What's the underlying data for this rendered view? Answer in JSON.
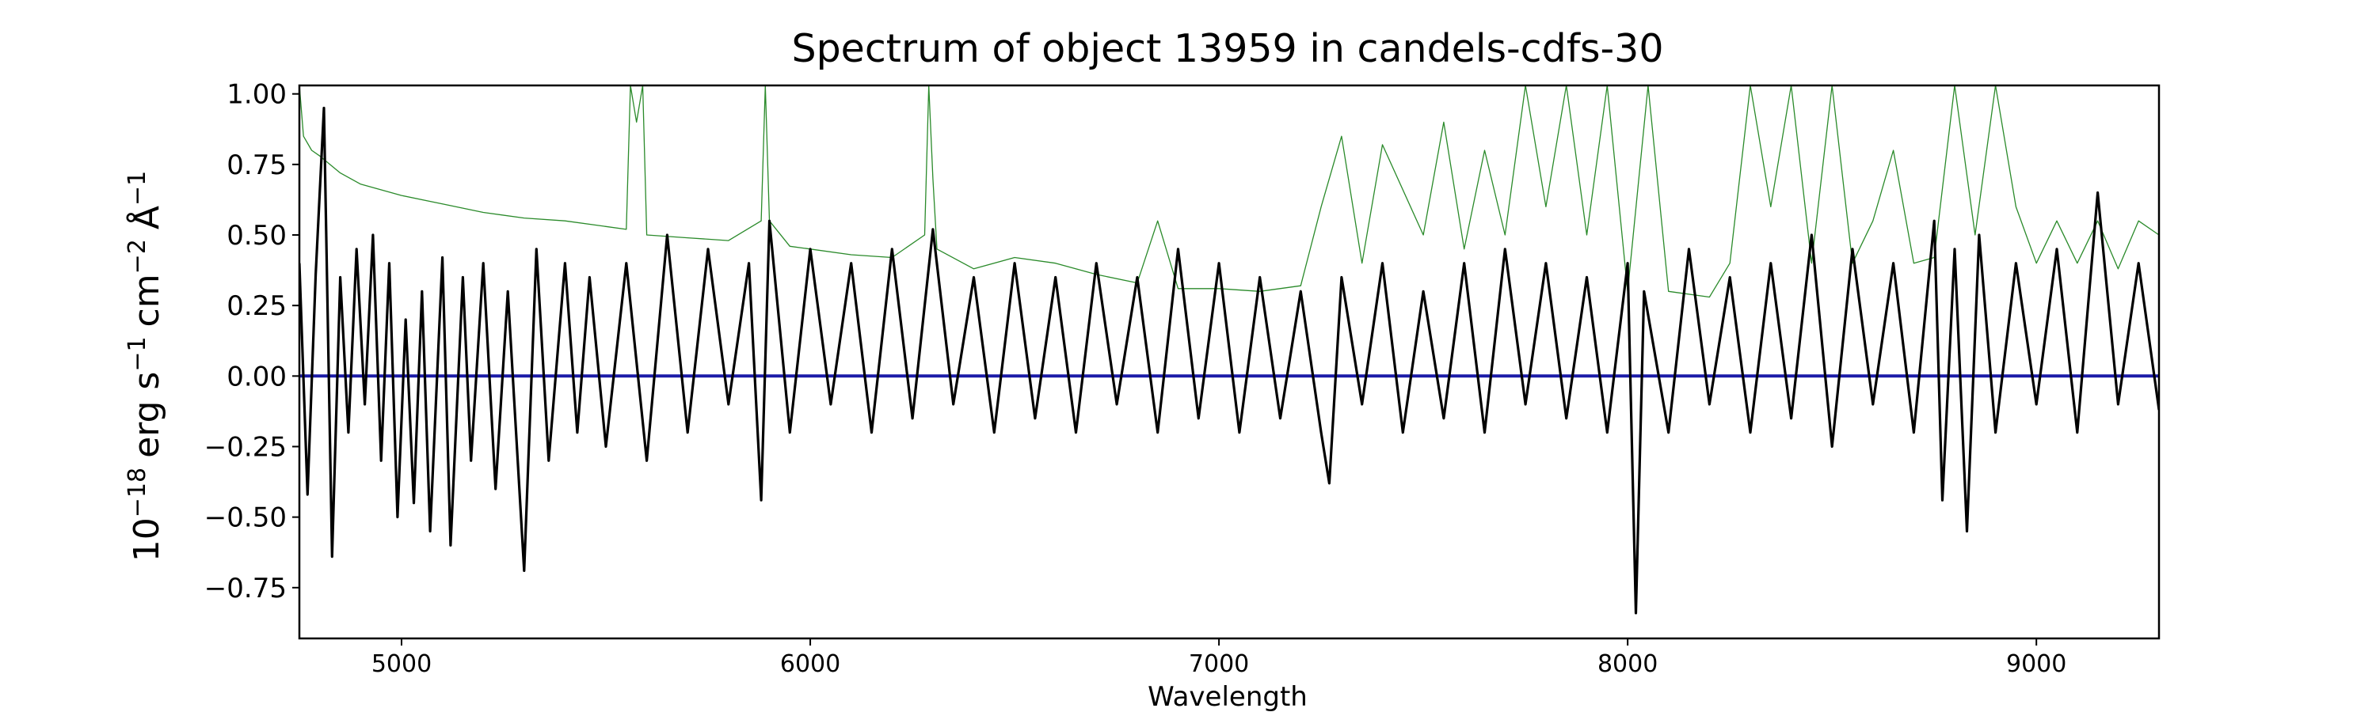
{
  "chart_data": {
    "type": "line",
    "title": "Spectrum of object 13959 in candels-cdfs-30",
    "xlabel": "Wavelength",
    "ylabel_base": "10",
    "ylabel_exp": "−18",
    "ylabel_parts": [
      "erg s",
      "−1",
      "cm",
      "−2",
      "Å",
      "−1"
    ],
    "xlim": [
      4750,
      9300
    ],
    "ylim": [
      -0.93,
      1.03
    ],
    "xticks": [
      5000,
      6000,
      7000,
      8000,
      9000
    ],
    "xtick_labels": [
      "5000",
      "6000",
      "7000",
      "8000",
      "9000"
    ],
    "yticks": [
      1.0,
      0.75,
      0.5,
      0.25,
      0.0,
      -0.25,
      -0.5,
      -0.75
    ],
    "ytick_labels": [
      "1.00",
      "0.75",
      "0.50",
      "0.25",
      "0.00",
      "−0.25",
      "−0.50",
      "−0.75"
    ],
    "grid": false,
    "series": [
      {
        "color": "#000000",
        "style": "flux",
        "x": [
          4750,
          4770,
          4790,
          4810,
          4830,
          4850,
          4870,
          4890,
          4910,
          4930,
          4950,
          4970,
          4990,
          5010,
          5030,
          5050,
          5070,
          5100,
          5120,
          5150,
          5170,
          5200,
          5230,
          5260,
          5300,
          5330,
          5360,
          5400,
          5430,
          5460,
          5500,
          5550,
          5600,
          5650,
          5700,
          5750,
          5800,
          5850,
          5880,
          5900,
          5950,
          6000,
          6050,
          6100,
          6150,
          6200,
          6250,
          6300,
          6350,
          6400,
          6450,
          6500,
          6550,
          6600,
          6650,
          6700,
          6750,
          6800,
          6850,
          6900,
          6950,
          7000,
          7050,
          7100,
          7150,
          7200,
          7250,
          7270,
          7300,
          7350,
          7400,
          7450,
          7500,
          7550,
          7600,
          7650,
          7700,
          7750,
          7800,
          7850,
          7900,
          7950,
          8000,
          8020,
          8040,
          8100,
          8150,
          8200,
          8250,
          8300,
          8350,
          8400,
          8450,
          8500,
          8550,
          8600,
          8650,
          8700,
          8750,
          8770,
          8800,
          8830,
          8860,
          8900,
          8950,
          9000,
          9050,
          9100,
          9150,
          9200,
          9250,
          9300
        ],
        "y": [
          0.4,
          -0.42,
          0.36,
          0.95,
          -0.64,
          0.35,
          -0.2,
          0.45,
          -0.1,
          0.5,
          -0.3,
          0.4,
          -0.5,
          0.2,
          -0.45,
          0.3,
          -0.55,
          0.42,
          -0.6,
          0.35,
          -0.3,
          0.4,
          -0.4,
          0.3,
          -0.69,
          0.45,
          -0.3,
          0.4,
          -0.2,
          0.35,
          -0.25,
          0.4,
          -0.3,
          0.5,
          -0.2,
          0.45,
          -0.1,
          0.4,
          -0.44,
          0.55,
          -0.2,
          0.45,
          -0.1,
          0.4,
          -0.2,
          0.45,
          -0.15,
          0.52,
          -0.1,
          0.35,
          -0.2,
          0.4,
          -0.15,
          0.35,
          -0.2,
          0.4,
          -0.1,
          0.35,
          -0.2,
          0.45,
          -0.15,
          0.4,
          -0.2,
          0.35,
          -0.15,
          0.3,
          -0.2,
          -0.38,
          0.35,
          -0.1,
          0.4,
          -0.2,
          0.3,
          -0.15,
          0.4,
          -0.2,
          0.45,
          -0.1,
          0.4,
          -0.15,
          0.35,
          -0.2,
          0.4,
          -0.84,
          0.3,
          -0.2,
          0.45,
          -0.1,
          0.35,
          -0.2,
          0.4,
          -0.15,
          0.5,
          -0.25,
          0.45,
          -0.1,
          0.4,
          -0.2,
          0.55,
          -0.44,
          0.45,
          -0.55,
          0.5,
          -0.2,
          0.4,
          -0.1,
          0.45,
          -0.2,
          0.65,
          -0.1,
          0.4,
          -0.12
        ]
      },
      {
        "color": "#2a8a2a",
        "style": "error",
        "x": [
          4750,
          4760,
          4780,
          4800,
          4850,
          4900,
          5000,
          5100,
          5200,
          5300,
          5400,
          5500,
          5550,
          5560,
          5575,
          5590,
          5600,
          5700,
          5800,
          5880,
          5890,
          5900,
          5950,
          6000,
          6100,
          6200,
          6280,
          6290,
          6300,
          6310,
          6400,
          6500,
          6600,
          6700,
          6800,
          6850,
          6900,
          7000,
          7100,
          7200,
          7250,
          7300,
          7350,
          7400,
          7500,
          7550,
          7600,
          7650,
          7700,
          7750,
          7800,
          7850,
          7900,
          7950,
          8000,
          8050,
          8100,
          8200,
          8250,
          8300,
          8350,
          8400,
          8450,
          8500,
          8550,
          8600,
          8650,
          8700,
          8750,
          8800,
          8850,
          8900,
          8950,
          9000,
          9050,
          9100,
          9150,
          9200,
          9250,
          9300
        ],
        "y": [
          1.03,
          0.85,
          0.8,
          0.78,
          0.72,
          0.68,
          0.64,
          0.61,
          0.58,
          0.56,
          0.55,
          0.53,
          0.52,
          1.03,
          0.9,
          1.03,
          0.5,
          0.49,
          0.48,
          0.55,
          1.03,
          0.55,
          0.46,
          0.45,
          0.43,
          0.42,
          0.5,
          1.03,
          0.7,
          0.45,
          0.38,
          0.42,
          0.4,
          0.36,
          0.33,
          0.55,
          0.31,
          0.31,
          0.3,
          0.32,
          0.6,
          0.85,
          0.4,
          0.82,
          0.5,
          0.9,
          0.45,
          0.8,
          0.5,
          1.03,
          0.6,
          1.03,
          0.5,
          1.03,
          0.3,
          1.03,
          0.3,
          0.28,
          0.4,
          1.03,
          0.6,
          1.03,
          0.4,
          1.03,
          0.4,
          0.55,
          0.8,
          0.4,
          0.42,
          1.03,
          0.5,
          1.03,
          0.6,
          0.4,
          0.55,
          0.4,
          0.55,
          0.38,
          0.55,
          0.5
        ]
      },
      {
        "color": "#1c1ca8",
        "style": "model",
        "x": [
          4750,
          9300
        ],
        "y": [
          0.0,
          0.0
        ]
      }
    ]
  }
}
